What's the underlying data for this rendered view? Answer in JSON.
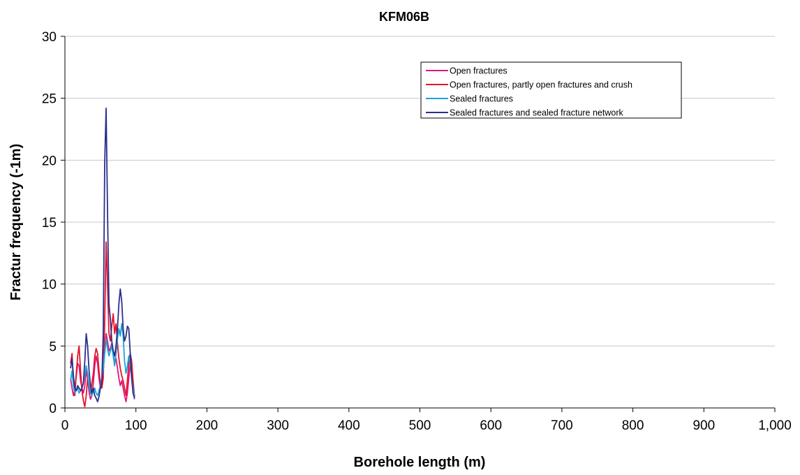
{
  "chart_data": {
    "type": "line",
    "title": "KFM06B",
    "xlabel": "Borehole length (m)",
    "ylabel": "Fractur frequency (-1m)",
    "xlim": [
      0,
      1000
    ],
    "ylim": [
      0,
      30
    ],
    "x_ticks": [
      0,
      100,
      200,
      300,
      400,
      500,
      600,
      700,
      800,
      900,
      1000
    ],
    "x_tick_labels": [
      "0",
      "100",
      "200",
      "300",
      "400",
      "500",
      "600",
      "700",
      "800",
      "900",
      "1,000"
    ],
    "y_ticks": [
      0,
      5,
      10,
      15,
      20,
      25,
      30
    ],
    "y_tick_labels": [
      "0",
      "5",
      "10",
      "15",
      "20",
      "25",
      "30"
    ],
    "grid": "horizontal",
    "legend_position": "top-right",
    "series": [
      {
        "name": "Open fractures",
        "color": "#e0157f",
        "points": [
          [
            8,
            2.4
          ],
          [
            10,
            1.6
          ],
          [
            12,
            1.0
          ],
          [
            14,
            1.5
          ],
          [
            16,
            2.6
          ],
          [
            18,
            3.6
          ],
          [
            20,
            3.4
          ],
          [
            22,
            2.2
          ],
          [
            24,
            1.6
          ],
          [
            26,
            1.2
          ],
          [
            28,
            1.8
          ],
          [
            30,
            3.0
          ],
          [
            32,
            2.4
          ],
          [
            34,
            1.3
          ],
          [
            36,
            0.7
          ],
          [
            38,
            1.0
          ],
          [
            40,
            2.0
          ],
          [
            42,
            3.4
          ],
          [
            44,
            4.2
          ],
          [
            46,
            3.6
          ],
          [
            48,
            2.4
          ],
          [
            50,
            1.6
          ],
          [
            52,
            1.8
          ],
          [
            54,
            3.0
          ],
          [
            56,
            4.6
          ],
          [
            58,
            6.0
          ],
          [
            60,
            5.4
          ],
          [
            62,
            4.6
          ],
          [
            64,
            4.8
          ],
          [
            66,
            5.2
          ],
          [
            68,
            4.4
          ],
          [
            70,
            3.6
          ],
          [
            72,
            4.0
          ],
          [
            74,
            3.2
          ],
          [
            76,
            2.4
          ],
          [
            78,
            1.8
          ],
          [
            80,
            2.2
          ],
          [
            82,
            1.6
          ],
          [
            84,
            1.0
          ],
          [
            86,
            0.5
          ],
          [
            88,
            1.2
          ],
          [
            90,
            2.4
          ],
          [
            92,
            3.6
          ],
          [
            94,
            2.6
          ],
          [
            96,
            1.4
          ],
          [
            98,
            0.7
          ]
        ]
      },
      {
        "name": "Open fractures, partly open fractures and crush",
        "color": "#e3142b",
        "points": [
          [
            8,
            3.6
          ],
          [
            10,
            4.4
          ],
          [
            12,
            2.0
          ],
          [
            14,
            1.0
          ],
          [
            16,
            2.8
          ],
          [
            18,
            4.2
          ],
          [
            20,
            5.0
          ],
          [
            22,
            3.0
          ],
          [
            24,
            1.4
          ],
          [
            26,
            0.6
          ],
          [
            28,
            0.1
          ],
          [
            30,
            1.0
          ],
          [
            32,
            2.4
          ],
          [
            34,
            1.8
          ],
          [
            36,
            1.2
          ],
          [
            38,
            2.0
          ],
          [
            40,
            2.8
          ],
          [
            42,
            4.2
          ],
          [
            44,
            4.8
          ],
          [
            46,
            4.4
          ],
          [
            48,
            3.0
          ],
          [
            50,
            2.0
          ],
          [
            52,
            1.6
          ],
          [
            54,
            2.4
          ],
          [
            56,
            7.0
          ],
          [
            58,
            13.4
          ],
          [
            60,
            10.0
          ],
          [
            62,
            6.0
          ],
          [
            64,
            5.4
          ],
          [
            66,
            6.6
          ],
          [
            68,
            7.6
          ],
          [
            70,
            6.0
          ],
          [
            72,
            6.8
          ],
          [
            74,
            5.2
          ],
          [
            76,
            4.0
          ],
          [
            78,
            3.2
          ],
          [
            80,
            2.6
          ],
          [
            82,
            2.2
          ],
          [
            84,
            1.6
          ],
          [
            86,
            1.0
          ],
          [
            88,
            2.2
          ],
          [
            90,
            3.6
          ],
          [
            92,
            4.4
          ],
          [
            94,
            3.8
          ],
          [
            96,
            2.2
          ],
          [
            98,
            0.9
          ]
        ]
      },
      {
        "name": "Sealed fractures",
        "color": "#1aa3dc",
        "points": [
          [
            8,
            2.2
          ],
          [
            10,
            3.0
          ],
          [
            12,
            1.8
          ],
          [
            14,
            1.2
          ],
          [
            16,
            1.4
          ],
          [
            18,
            1.6
          ],
          [
            20,
            1.2
          ],
          [
            22,
            1.4
          ],
          [
            24,
            1.6
          ],
          [
            26,
            2.0
          ],
          [
            28,
            2.6
          ],
          [
            30,
            3.4
          ],
          [
            32,
            2.8
          ],
          [
            34,
            1.8
          ],
          [
            36,
            1.2
          ],
          [
            38,
            1.0
          ],
          [
            40,
            1.4
          ],
          [
            42,
            1.6
          ],
          [
            44,
            1.2
          ],
          [
            46,
            1.0
          ],
          [
            48,
            1.4
          ],
          [
            50,
            1.8
          ],
          [
            52,
            2.4
          ],
          [
            54,
            3.2
          ],
          [
            56,
            4.4
          ],
          [
            58,
            5.6
          ],
          [
            60,
            4.8
          ],
          [
            62,
            4.2
          ],
          [
            64,
            4.6
          ],
          [
            66,
            5.0
          ],
          [
            68,
            4.2
          ],
          [
            70,
            3.4
          ],
          [
            72,
            4.4
          ],
          [
            74,
            5.6
          ],
          [
            76,
            6.4
          ],
          [
            78,
            5.8
          ],
          [
            80,
            6.8
          ],
          [
            82,
            5.8
          ],
          [
            84,
            3.8
          ],
          [
            86,
            2.8
          ],
          [
            88,
            3.4
          ],
          [
            90,
            4.2
          ],
          [
            92,
            3.6
          ],
          [
            94,
            2.4
          ],
          [
            96,
            1.6
          ],
          [
            98,
            1.0
          ]
        ]
      },
      {
        "name": "Sealed fractures and sealed fracture network",
        "color": "#2a2f8c",
        "points": [
          [
            8,
            3.2
          ],
          [
            10,
            4.0
          ],
          [
            12,
            2.6
          ],
          [
            14,
            1.6
          ],
          [
            16,
            1.4
          ],
          [
            18,
            1.8
          ],
          [
            20,
            1.6
          ],
          [
            22,
            1.4
          ],
          [
            24,
            1.6
          ],
          [
            26,
            2.0
          ],
          [
            28,
            3.8
          ],
          [
            30,
            6.0
          ],
          [
            32,
            5.0
          ],
          [
            34,
            3.0
          ],
          [
            36,
            1.8
          ],
          [
            38,
            1.2
          ],
          [
            40,
            1.6
          ],
          [
            42,
            1.0
          ],
          [
            44,
            0.8
          ],
          [
            46,
            0.5
          ],
          [
            48,
            0.9
          ],
          [
            50,
            1.6
          ],
          [
            52,
            2.2
          ],
          [
            54,
            6.0
          ],
          [
            56,
            19.8
          ],
          [
            58,
            24.2
          ],
          [
            60,
            16.0
          ],
          [
            62,
            8.4
          ],
          [
            64,
            7.2
          ],
          [
            66,
            5.4
          ],
          [
            68,
            4.6
          ],
          [
            70,
            4.2
          ],
          [
            72,
            5.0
          ],
          [
            74,
            6.4
          ],
          [
            76,
            8.4
          ],
          [
            78,
            9.6
          ],
          [
            80,
            8.6
          ],
          [
            82,
            6.4
          ],
          [
            84,
            5.4
          ],
          [
            86,
            5.8
          ],
          [
            88,
            6.6
          ],
          [
            90,
            6.4
          ],
          [
            92,
            4.4
          ],
          [
            94,
            2.4
          ],
          [
            96,
            1.2
          ],
          [
            98,
            0.8
          ]
        ]
      }
    ]
  }
}
